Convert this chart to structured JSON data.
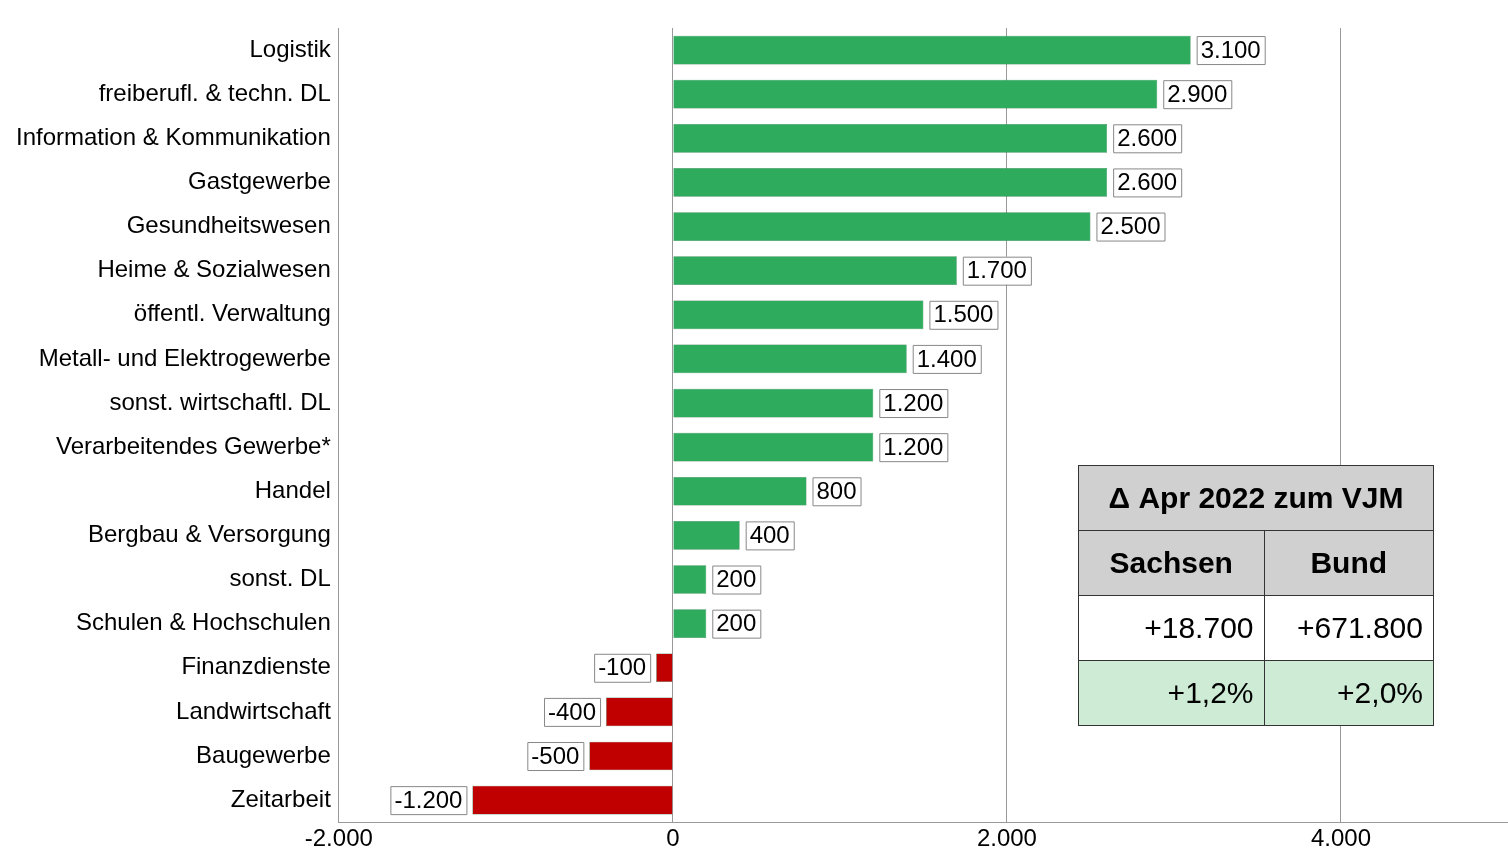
{
  "chart_data": {
    "type": "bar",
    "orientation": "horizontal",
    "categories": [
      "Logistik",
      "freiberufl. & techn. DL",
      "Information & Kommunikation",
      "Gastgewerbe",
      "Gesundheitswesen",
      "Heime & Sozialwesen",
      "öffentl. Verwaltung",
      "Metall- und Elektrogewerbe",
      "sonst. wirtschaftl. DL",
      "Verarbeitendes Gewerbe*",
      "Handel",
      "Bergbau & Versorgung",
      "sonst. DL",
      "Schulen & Hochschulen",
      "Finanzdienste",
      "Landwirtschaft",
      "Baugewerbe",
      "Zeitarbeit"
    ],
    "values": [
      3100,
      2900,
      2600,
      2600,
      2500,
      1700,
      1500,
      1400,
      1200,
      1200,
      800,
      400,
      200,
      200,
      -100,
      -400,
      -500,
      -1200
    ],
    "colors": [
      "#2eab5c",
      "#2eab5c",
      "#2eab5c",
      "#2eab5c",
      "#2eab5c",
      "#2eab5c",
      "#2eab5c",
      "#2eab5c",
      "#2eab5c",
      "#2eab5c",
      "#2eab5c",
      "#2eab5c",
      "#2eab5c",
      "#2eab5c",
      "#c00000",
      "#c00000",
      "#c00000",
      "#c00000"
    ],
    "value_labels": [
      "3.100",
      "2.900",
      "2.600",
      "2.600",
      "2.500",
      "1.700",
      "1.500",
      "1.400",
      "1.200",
      "1.200",
      "800",
      "400",
      "200",
      "200",
      "-100",
      "-400",
      "-500",
      "-1.200"
    ],
    "xlim": [
      -2000,
      5000
    ],
    "xticks": [
      {
        "value": -2000,
        "label": "-2.000"
      },
      0,
      {
        "value": 2000,
        "label": "2.000"
      },
      {
        "value": 4000,
        "label": "4.000"
      }
    ],
    "grid": "x",
    "legend": false,
    "annotations": [
      "Δ Apr 2022 zum VJM",
      "Sachsen",
      "Bund",
      "+18.700",
      "+671.800",
      "+1,2%",
      "+2,0%"
    ]
  }
}
